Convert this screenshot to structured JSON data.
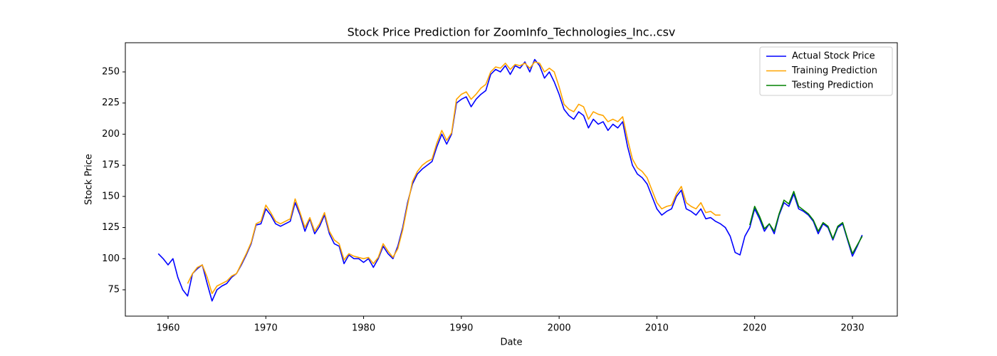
{
  "chart_data": {
    "type": "line",
    "title": "Stock Price Prediction for ZoomInfo_Technologies_Inc..csv",
    "x_label": "Date",
    "y_label": "Stock Price",
    "legend": "upper right",
    "xlim": [
      1955.63,
      2034.59
    ],
    "ylim": [
      53.84,
      273.45
    ],
    "xticks": [
      1960,
      1970,
      1980,
      1990,
      2000,
      2010,
      2020,
      2030
    ],
    "yticks": [
      75,
      100,
      125,
      150,
      175,
      200,
      225,
      250
    ],
    "x": [
      1959,
      1959.5,
      1960,
      1960.5,
      1961,
      1961.5,
      1962,
      1962.5,
      1963,
      1963.5,
      1964,
      1964.5,
      1965,
      1965.5,
      1966,
      1966.5,
      1967,
      1967.5,
      1968,
      1968.5,
      1969,
      1969.5,
      1970,
      1970.5,
      1971,
      1971.5,
      1972,
      1972.5,
      1973,
      1973.5,
      1974,
      1974.5,
      1975,
      1975.5,
      1976,
      1976.5,
      1977,
      1977.5,
      1978,
      1978.5,
      1979,
      1979.5,
      1980,
      1980.5,
      1981,
      1981.5,
      1982,
      1982.5,
      1983,
      1983.5,
      1984,
      1984.5,
      1985,
      1985.5,
      1986,
      1986.5,
      1987,
      1987.5,
      1988,
      1988.5,
      1989,
      1989.5,
      1990,
      1990.5,
      1991,
      1991.5,
      1992,
      1992.5,
      1993,
      1993.5,
      1994,
      1994.5,
      1995,
      1995.5,
      1996,
      1996.5,
      1997,
      1997.5,
      1998,
      1998.5,
      1999,
      1999.5,
      2000,
      2000.5,
      2001,
      2001.5,
      2002,
      2002.5,
      2003,
      2003.5,
      2004,
      2004.5,
      2005,
      2005.5,
      2006,
      2006.5,
      2007,
      2007.5,
      2008,
      2008.5,
      2009,
      2009.5,
      2010,
      2010.5,
      2011,
      2011.5,
      2012,
      2012.5,
      2013,
      2013.5,
      2014,
      2014.5,
      2015,
      2015.5,
      2016,
      2016.5,
      2017,
      2017.5,
      2018,
      2018.5,
      2019,
      2019.5,
      2020,
      2020.5,
      2021,
      2021.5,
      2022,
      2022.5,
      2023,
      2023.5,
      2024,
      2024.5,
      2025,
      2025.5,
      2026,
      2026.5,
      2027,
      2027.5,
      2028,
      2028.5,
      2029,
      2029.5,
      2030,
      2030.5,
      2031
    ],
    "series": [
      {
        "name": "Actual Stock Price",
        "color": "#0000ff",
        "values": [
          104,
          100,
          95,
          100,
          85,
          75,
          70,
          88,
          92,
          95,
          80,
          66,
          75,
          78,
          80,
          85,
          88,
          95,
          103,
          112,
          127,
          128,
          140,
          135,
          128,
          126,
          128,
          130,
          145,
          135,
          122,
          132,
          120,
          126,
          135,
          120,
          112,
          110,
          96,
          103,
          100,
          100,
          97,
          100,
          93,
          100,
          110,
          104,
          100,
          110,
          125,
          145,
          160,
          168,
          172,
          175,
          178,
          190,
          200,
          192,
          200,
          225,
          228,
          230,
          222,
          228,
          232,
          235,
          248,
          252,
          250,
          255,
          248,
          255,
          253,
          258,
          250,
          260,
          255,
          245,
          250,
          242,
          232,
          220,
          215,
          212,
          218,
          215,
          205,
          212,
          208,
          210,
          203,
          208,
          205,
          210,
          190,
          175,
          168,
          165,
          160,
          150,
          140,
          135,
          138,
          140,
          150,
          155,
          140,
          138,
          135,
          140,
          132,
          133,
          130,
          128,
          125,
          118,
          105,
          103,
          118,
          125,
          140,
          132,
          122,
          128,
          120,
          135,
          145,
          142,
          152,
          140,
          138,
          135,
          130,
          120,
          128,
          125,
          115,
          125,
          128,
          115,
          102,
          110,
          119
        ]
      },
      {
        "name": "Training Prediction",
        "color": "#ffa500",
        "values": [
          null,
          null,
          null,
          null,
          null,
          null,
          80,
          88,
          93,
          95,
          85,
          72,
          78,
          80,
          82,
          86,
          88,
          96,
          104,
          113,
          128,
          130,
          143,
          137,
          130,
          128,
          130,
          132,
          148,
          137,
          125,
          133,
          122,
          128,
          137,
          122,
          115,
          112,
          99,
          104,
          102,
          101,
          100,
          101,
          96,
          101,
          112,
          106,
          101,
          108,
          123,
          143,
          162,
          170,
          175,
          178,
          180,
          193,
          203,
          195,
          201,
          228,
          232,
          234,
          228,
          232,
          237,
          240,
          250,
          254,
          253,
          257,
          252,
          256,
          255,
          257,
          253,
          258,
          257,
          250,
          253,
          250,
          238,
          224,
          220,
          218,
          224,
          222,
          212,
          218,
          216,
          215,
          210,
          212,
          210,
          214,
          196,
          180,
          173,
          170,
          165,
          155,
          145,
          140,
          142,
          143,
          152,
          158,
          145,
          142,
          140,
          145,
          137,
          138,
          135,
          135,
          null,
          null,
          null,
          null,
          null,
          null,
          null,
          null,
          null,
          null,
          null,
          null,
          null,
          null,
          null,
          null,
          null,
          null,
          null,
          null,
          null,
          null,
          null,
          null,
          null,
          null,
          null,
          null,
          null
        ]
      },
      {
        "name": "Testing Prediction",
        "color": "#008000",
        "values": [
          null,
          null,
          null,
          null,
          null,
          null,
          null,
          null,
          null,
          null,
          null,
          null,
          null,
          null,
          null,
          null,
          null,
          null,
          null,
          null,
          null,
          null,
          null,
          null,
          null,
          null,
          null,
          null,
          null,
          null,
          null,
          null,
          null,
          null,
          null,
          null,
          null,
          null,
          null,
          null,
          null,
          null,
          null,
          null,
          null,
          null,
          null,
          null,
          null,
          null,
          null,
          null,
          null,
          null,
          null,
          null,
          null,
          null,
          null,
          null,
          null,
          null,
          null,
          null,
          null,
          null,
          null,
          null,
          null,
          null,
          null,
          null,
          null,
          null,
          null,
          null,
          null,
          null,
          null,
          null,
          null,
          null,
          null,
          null,
          null,
          null,
          null,
          null,
          null,
          null,
          null,
          null,
          null,
          null,
          null,
          null,
          null,
          null,
          null,
          null,
          null,
          null,
          null,
          null,
          null,
          null,
          null,
          null,
          null,
          null,
          null,
          null,
          null,
          null,
          null,
          null,
          null,
          null,
          null,
          null,
          null,
          127,
          142,
          134,
          124,
          128,
          122,
          136,
          147,
          144,
          154,
          142,
          139,
          136,
          131,
          122,
          129,
          126,
          116,
          126,
          129,
          116,
          104,
          111,
          118
        ]
      }
    ]
  }
}
